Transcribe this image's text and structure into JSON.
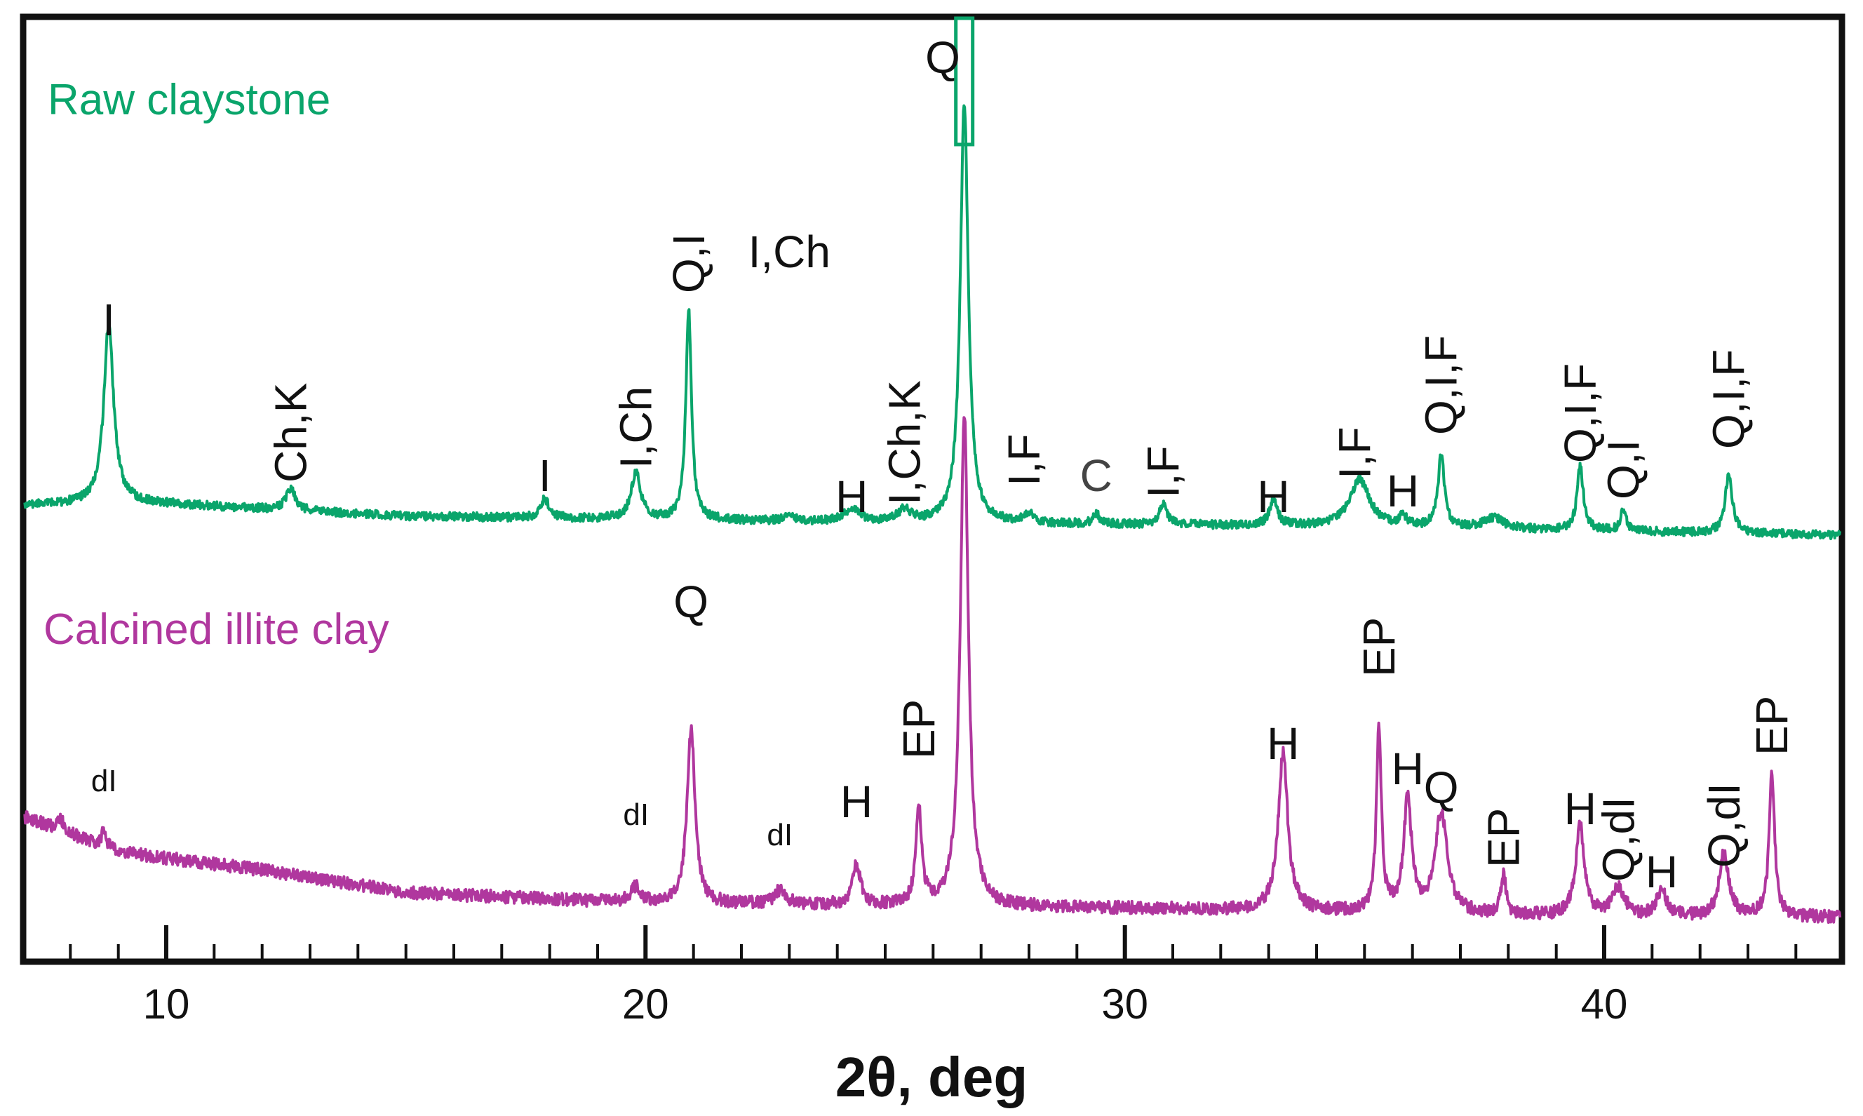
{
  "chart_data": {
    "type": "line",
    "xlabel": "2θ, deg",
    "ylabel": "",
    "xlim": [
      7.0,
      45.0
    ],
    "xticks": [
      10,
      20,
      30,
      40
    ],
    "xtick_labels": [
      "10",
      "20",
      "30",
      "40"
    ],
    "grid": false,
    "series": [
      {
        "name": "Raw claystone",
        "color": "#0aa56b",
        "baseline": [
          [
            7.0,
            0.2
          ],
          [
            9.0,
            0.22
          ],
          [
            15.0,
            0.15
          ],
          [
            25.0,
            0.12
          ],
          [
            35.0,
            0.1
          ],
          [
            45.0,
            0.06
          ]
        ],
        "peaks": [
          {
            "x": 8.8,
            "height": 0.85,
            "width": 0.12
          },
          {
            "x": 12.6,
            "height": 0.1,
            "width": 0.12
          },
          {
            "x": 17.9,
            "height": 0.09,
            "width": 0.1
          },
          {
            "x": 19.8,
            "height": 0.22,
            "width": 0.12
          },
          {
            "x": 20.9,
            "height": 1.0,
            "width": 0.07
          },
          {
            "x": 23.0,
            "height": 0.03,
            "width": 0.1
          },
          {
            "x": 24.3,
            "height": 0.06,
            "width": 0.18
          },
          {
            "x": 25.4,
            "height": 0.06,
            "width": 0.15
          },
          {
            "x": 26.65,
            "height": 2.0,
            "width": 0.1
          },
          {
            "x": 28.0,
            "height": 0.05,
            "width": 0.1
          },
          {
            "x": 29.4,
            "height": 0.05,
            "width": 0.08
          },
          {
            "x": 30.8,
            "height": 0.1,
            "width": 0.1
          },
          {
            "x": 33.1,
            "height": 0.12,
            "width": 0.1
          },
          {
            "x": 34.9,
            "height": 0.22,
            "width": 0.25
          },
          {
            "x": 35.8,
            "height": 0.05,
            "width": 0.08
          },
          {
            "x": 36.6,
            "height": 0.34,
            "width": 0.08
          },
          {
            "x": 37.7,
            "height": 0.05,
            "width": 0.25
          },
          {
            "x": 39.5,
            "height": 0.3,
            "width": 0.08
          },
          {
            "x": 40.4,
            "height": 0.1,
            "width": 0.07
          },
          {
            "x": 42.6,
            "height": 0.28,
            "width": 0.09
          }
        ]
      },
      {
        "name": "Calcined illite clay",
        "color": "#b0379e",
        "baseline": [
          [
            7.0,
            0.52
          ],
          [
            9.0,
            0.36
          ],
          [
            12.0,
            0.28
          ],
          [
            15.0,
            0.18
          ],
          [
            20.0,
            0.13
          ],
          [
            25.0,
            0.12
          ],
          [
            30.0,
            0.11
          ],
          [
            35.0,
            0.09
          ],
          [
            40.0,
            0.07
          ],
          [
            45.0,
            0.07
          ]
        ],
        "peaks": [
          {
            "x": 7.8,
            "height": 0.05,
            "width": 0.08
          },
          {
            "x": 8.7,
            "height": 0.07,
            "width": 0.06
          },
          {
            "x": 19.8,
            "height": 0.07,
            "width": 0.12
          },
          {
            "x": 20.95,
            "height": 0.78,
            "width": 0.1
          },
          {
            "x": 22.8,
            "height": 0.06,
            "width": 0.15
          },
          {
            "x": 24.4,
            "height": 0.18,
            "width": 0.1
          },
          {
            "x": 25.7,
            "height": 0.45,
            "width": 0.07
          },
          {
            "x": 26.65,
            "height": 2.2,
            "width": 0.1
          },
          {
            "x": 33.3,
            "height": 0.7,
            "width": 0.12
          },
          {
            "x": 35.3,
            "height": 0.83,
            "width": 0.06
          },
          {
            "x": 35.9,
            "height": 0.5,
            "width": 0.1
          },
          {
            "x": 36.6,
            "height": 0.45,
            "width": 0.15
          },
          {
            "x": 37.9,
            "height": 0.18,
            "width": 0.06
          },
          {
            "x": 39.5,
            "height": 0.4,
            "width": 0.11
          },
          {
            "x": 40.3,
            "height": 0.13,
            "width": 0.15
          },
          {
            "x": 41.2,
            "height": 0.12,
            "width": 0.12
          },
          {
            "x": 42.5,
            "height": 0.28,
            "width": 0.12
          },
          {
            "x": 43.5,
            "height": 0.63,
            "width": 0.07
          }
        ]
      }
    ],
    "annotations": [
      {
        "series": "Raw claystone",
        "x": 8.8,
        "text": "I"
      },
      {
        "series": "Raw claystone",
        "x": 12.6,
        "text": "Ch,K"
      },
      {
        "series": "Raw claystone",
        "x": 17.9,
        "text": "I"
      },
      {
        "series": "Raw claystone",
        "x": 19.8,
        "text": "I,Ch"
      },
      {
        "series": "Raw claystone",
        "x": 20.9,
        "text": "Q,I"
      },
      {
        "series": "Raw claystone",
        "x": 23.0,
        "text": "I,Ch"
      },
      {
        "series": "Raw claystone",
        "x": 24.3,
        "text": "H"
      },
      {
        "series": "Raw claystone",
        "x": 25.4,
        "text": "I,Ch,K"
      },
      {
        "series": "Raw claystone",
        "x": 26.2,
        "text": "Q"
      },
      {
        "series": "Raw claystone",
        "x": 27.9,
        "text": "I,F"
      },
      {
        "series": "Raw claystone",
        "x": 29.4,
        "text": "C"
      },
      {
        "series": "Raw claystone",
        "x": 30.8,
        "text": "I,F"
      },
      {
        "series": "Raw claystone",
        "x": 33.1,
        "text": "H"
      },
      {
        "series": "Raw claystone",
        "x": 34.8,
        "text": "I,F"
      },
      {
        "series": "Raw claystone",
        "x": 35.8,
        "text": "H"
      },
      {
        "series": "Raw claystone",
        "x": 36.6,
        "text": "Q,I,F"
      },
      {
        "series": "Raw claystone",
        "x": 39.5,
        "text": "Q,I,F"
      },
      {
        "series": "Raw claystone",
        "x": 40.4,
        "text": "Q,I"
      },
      {
        "series": "Raw claystone",
        "x": 42.6,
        "text": "Q,I,F"
      },
      {
        "series": "Calcined illite clay",
        "x": 8.7,
        "text": "dI"
      },
      {
        "series": "Calcined illite clay",
        "x": 19.8,
        "text": "dI"
      },
      {
        "series": "Calcined illite clay",
        "x": 20.95,
        "text": "Q"
      },
      {
        "series": "Calcined illite clay",
        "x": 22.8,
        "text": "dI"
      },
      {
        "series": "Calcined illite clay",
        "x": 24.4,
        "text": "H"
      },
      {
        "series": "Calcined illite clay",
        "x": 25.7,
        "text": "EP"
      },
      {
        "series": "Calcined illite clay",
        "x": 33.3,
        "text": "H"
      },
      {
        "series": "Calcined illite clay",
        "x": 35.3,
        "text": "EP"
      },
      {
        "series": "Calcined illite clay",
        "x": 35.9,
        "text": "H"
      },
      {
        "series": "Calcined illite clay",
        "x": 36.6,
        "text": "Q"
      },
      {
        "series": "Calcined illite clay",
        "x": 37.9,
        "text": "EP"
      },
      {
        "series": "Calcined illite clay",
        "x": 39.5,
        "text": "H"
      },
      {
        "series": "Calcined illite clay",
        "x": 40.3,
        "text": "Q,dI"
      },
      {
        "series": "Calcined illite clay",
        "x": 41.2,
        "text": "H"
      },
      {
        "series": "Calcined illite clay",
        "x": 42.5,
        "text": "Q,dI"
      },
      {
        "series": "Calcined illite clay",
        "x": 43.5,
        "text": "EP"
      }
    ]
  }
}
